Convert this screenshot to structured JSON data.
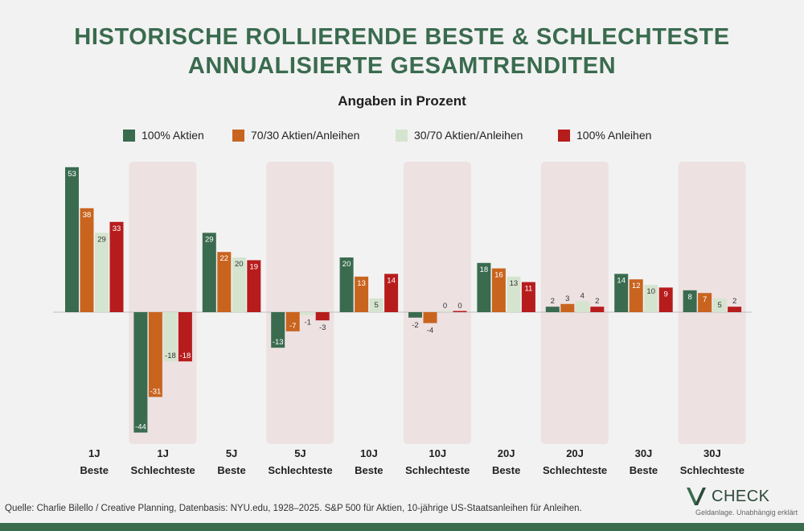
{
  "title_line1": "HISTORISCHE ROLLIERENDE BESTE & SCHLECHTESTE",
  "title_line2": "ANNUALISIERTE GESAMTRENDITEN",
  "subtitle": "Angaben in Prozent",
  "source": "Quelle: Charlie Bilello / Creative Planning, Datenbasis: NYU.edu, 1928–2025. S&P 500 für Aktien, 10-jährige US-Staatsanleihen für Anleihen.",
  "logo": {
    "text": "CHECK",
    "tagline": "Geldanlage. Unabhängig erklärt"
  },
  "colors": {
    "title": "#3a6b4f",
    "highlight_band": "#ede1e2",
    "background": "#f2f2f2"
  },
  "chart_data": {
    "type": "bar",
    "categories": [
      [
        "1J",
        "Beste"
      ],
      [
        "1J",
        "Schlechteste"
      ],
      [
        "5J",
        "Beste"
      ],
      [
        "5J",
        "Schlechteste"
      ],
      [
        "10J",
        "Beste"
      ],
      [
        "10J",
        "Schlechteste"
      ],
      [
        "20J",
        "Beste"
      ],
      [
        "20J",
        "Schlechteste"
      ],
      [
        "30J",
        "Beste"
      ],
      [
        "30J",
        "Schlechteste"
      ]
    ],
    "highlighted_categories": [
      1,
      3,
      5,
      7,
      9
    ],
    "series": [
      {
        "name": "100% Aktien",
        "color": "#3a6b4f",
        "values": [
          53,
          -44,
          29,
          -13,
          20,
          -2,
          18,
          2,
          14,
          8
        ]
      },
      {
        "name": "70/30 Aktien/Anleihen",
        "color": "#c9641f",
        "values": [
          38,
          -31,
          22,
          -7,
          13,
          -4,
          16,
          3,
          12,
          7
        ]
      },
      {
        "name": "30/70 Aktien/Anleihen",
        "color": "#d5e4cf",
        "values": [
          29,
          -18,
          20,
          -1,
          5,
          0,
          13,
          4,
          10,
          5
        ]
      },
      {
        "name": "100% Anleihen",
        "color": "#b71c1c",
        "values": [
          33,
          -18,
          19,
          -3,
          14,
          0,
          11,
          2,
          9,
          2
        ]
      }
    ],
    "ylim": [
      -44,
      53
    ],
    "grid": false,
    "legend_position": "top"
  }
}
